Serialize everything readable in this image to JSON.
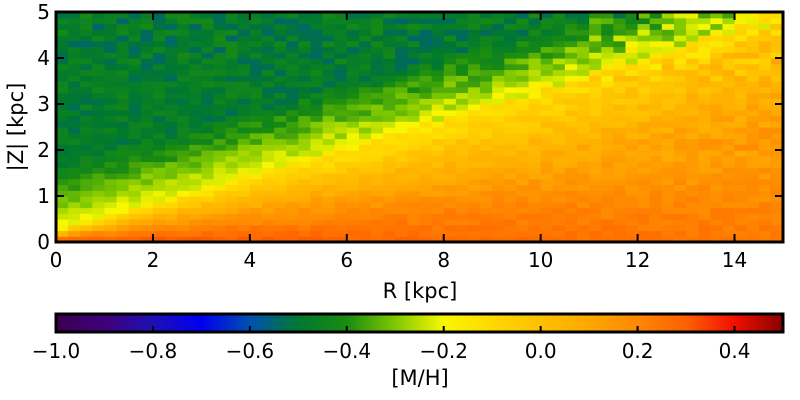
{
  "chart_data": {
    "type": "heatmap",
    "title": "",
    "xlabel": "R [kpc]",
    "ylabel": "|Z| [kpc]",
    "xlim": [
      0,
      15
    ],
    "ylim": [
      0,
      5
    ],
    "x_ticks": [
      {
        "value": 0,
        "label": "0"
      },
      {
        "value": 2,
        "label": "2"
      },
      {
        "value": 4,
        "label": "4"
      },
      {
        "value": 6,
        "label": "6"
      },
      {
        "value": 8,
        "label": "8"
      },
      {
        "value": 10,
        "label": "10"
      },
      {
        "value": 12,
        "label": "12"
      },
      {
        "value": 14,
        "label": "14"
      }
    ],
    "y_ticks": [
      {
        "value": 0,
        "label": "0"
      },
      {
        "value": 1,
        "label": "1"
      },
      {
        "value": 2,
        "label": "2"
      },
      {
        "value": 3,
        "label": "3"
      },
      {
        "value": 4,
        "label": "4"
      },
      {
        "value": 5,
        "label": "5"
      }
    ],
    "grid": false,
    "colorbar": {
      "label": "[M/H]",
      "orientation": "horizontal",
      "placement": "bottom",
      "range": [
        -1.0,
        0.5
      ],
      "ticks": [
        {
          "value": -1.0,
          "label": "−1.0"
        },
        {
          "value": -0.8,
          "label": "−0.8"
        },
        {
          "value": -0.6,
          "label": "−0.6"
        },
        {
          "value": -0.4,
          "label": "−0.4"
        },
        {
          "value": -0.2,
          "label": "−0.2"
        },
        {
          "value": 0.0,
          "label": "0.0"
        },
        {
          "value": 0.2,
          "label": "0.2"
        },
        {
          "value": 0.4,
          "label": "0.4"
        }
      ],
      "color_stops": [
        {
          "value": -1.0,
          "color": "#3a0050"
        },
        {
          "value": -0.9,
          "color": "#40007a"
        },
        {
          "value": -0.8,
          "color": "#1e10b4"
        },
        {
          "value": -0.7,
          "color": "#0000f0"
        },
        {
          "value": -0.6,
          "color": "#0050b0"
        },
        {
          "value": -0.5,
          "color": "#007830"
        },
        {
          "value": -0.4,
          "color": "#1a8c10"
        },
        {
          "value": -0.3,
          "color": "#80c800"
        },
        {
          "value": -0.2,
          "color": "#f8f800"
        },
        {
          "value": -0.1,
          "color": "#ffd800"
        },
        {
          "value": 0.0,
          "color": "#ffc000"
        },
        {
          "value": 0.1,
          "color": "#ffa800"
        },
        {
          "value": 0.2,
          "color": "#ff8800"
        },
        {
          "value": 0.3,
          "color": "#ff6000"
        },
        {
          "value": 0.4,
          "color": "#f01000"
        },
        {
          "value": 0.5,
          "color": "#880000"
        }
      ]
    },
    "heatmap_grid": {
      "x_bins": 60,
      "y_bins": 40
    },
    "trend": {
      "ridge_line_slope": 0.3,
      "midplane_value": 0.32,
      "ridge_value": -0.2,
      "high_z_value": -0.48,
      "outer_disk_value": 0.08,
      "noise": 0.05
    }
  }
}
